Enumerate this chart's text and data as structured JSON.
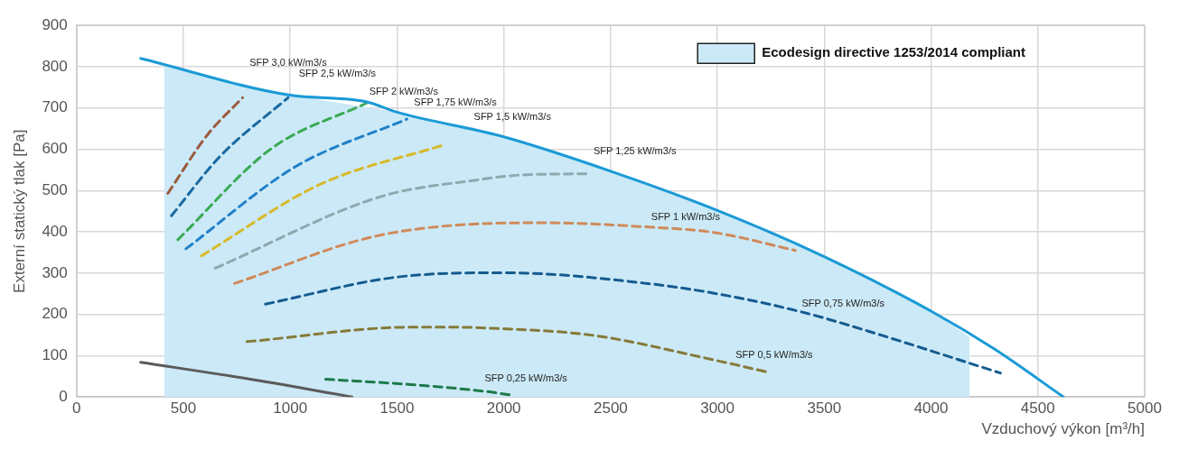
{
  "chart_data": {
    "type": "line",
    "xlabel": "Vzduchový výkon [m³/h]",
    "ylabel": "Externí statický tlak [Pa]",
    "xlim": [
      0,
      5000
    ],
    "ylim": [
      0,
      900
    ],
    "xticks": [
      0,
      500,
      1000,
      1500,
      2000,
      2500,
      3000,
      3500,
      4000,
      4500,
      5000
    ],
    "yticks": [
      0,
      100,
      200,
      300,
      400,
      500,
      600,
      700,
      800,
      900
    ],
    "grid": true,
    "legend": "top right",
    "series": [
      {
        "type": "area",
        "name": "Ecodesign directive 1253/2014 compliant",
        "color": "#cbe9f6",
        "x": [
          410,
          1000,
          1500,
          2000,
          2500,
          3000,
          3500,
          4000,
          4270,
          4180
        ],
        "values": [
          805,
          731,
          690,
          630,
          547,
          452,
          340,
          208,
          115,
          0
        ]
      },
      {
        "type": "line",
        "color": "#1a9ad6",
        "line_style": "solid",
        "x": [
          300,
          1000,
          1350,
          1500,
          2000,
          2500,
          3000,
          3500,
          4000,
          4300,
          4620
        ],
        "values": [
          820,
          731,
          716,
          690,
          630,
          547,
          452,
          340,
          208,
          115,
          0
        ]
      },
      {
        "type": "line",
        "color": "#5a5a5a",
        "line_style": "solid",
        "x": [
          300,
          790,
          1290
        ],
        "values": [
          84,
          45,
          0
        ]
      },
      {
        "type": "line",
        "color": "#9b5a3c",
        "line_style": "dashed",
        "x": [
          427,
          611,
          777
        ],
        "values": [
          493,
          634,
          725
        ]
      },
      {
        "type": "line",
        "color": "#1a69a0",
        "line_style": "dashed",
        "x": [
          444,
          670,
          990
        ],
        "values": [
          439,
          582,
          725
        ]
      },
      {
        "type": "line",
        "color": "#3aaa55",
        "line_style": "dashed",
        "x": [
          474,
          910,
          1358
        ],
        "values": [
          381,
          601,
          712
        ]
      },
      {
        "type": "line",
        "color": "#2080c8",
        "line_style": "dashed",
        "x": [
          512,
          1025,
          1546
        ],
        "values": [
          359,
          558,
          673
        ]
      },
      {
        "type": "line",
        "color": "#d8b92a",
        "line_style": "dashed",
        "x": [
          585,
          1140,
          1729
        ],
        "values": [
          342,
          515,
          612
        ]
      },
      {
        "type": "line",
        "color": "#8fa8b0",
        "line_style": "dashed",
        "x": [
          649,
          1422,
          1879,
          2062,
          2404
        ],
        "values": [
          312,
          485,
          526,
          537,
          541
        ]
      },
      {
        "type": "line",
        "color": "#d0895a",
        "line_style": "dashed",
        "x": [
          739,
          1422,
          2178,
          2634,
          2989,
          3365
        ],
        "values": [
          275,
          392,
          422,
          413,
          398,
          355
        ]
      },
      {
        "type": "line",
        "color": "#155b8f",
        "line_style": "dashed",
        "x": [
          884,
          1494,
          1994,
          2703,
          3061,
          3416,
          3702,
          4325
        ],
        "values": [
          225,
          290,
          301,
          273,
          244,
          203,
          160,
          58
        ]
      },
      {
        "type": "line",
        "color": "#857a3a",
        "line_style": "dashed",
        "x": [
          798,
          1567,
          1780,
          1921,
          2421,
          2989,
          3237
        ],
        "values": [
          134,
          169,
          169,
          167,
          149,
          89,
          60
        ]
      },
      {
        "type": "line",
        "color": "#1e7a4a",
        "line_style": "dashed",
        "x": [
          1166,
          1567,
          1921,
          2041
        ],
        "values": [
          43,
          30,
          13,
          4
        ]
      }
    ],
    "annotations": [
      "SFP 3,0 kW/m3/s",
      "SFP 2,5 kW/m3/s",
      "SFP 2 kW/m3/s",
      "SFP 1,75 kW/m3/s",
      "SFP 1,5 kW/m3/s",
      "SFP 1,25 kW/m3/s",
      "SFP 1 kW/m3/s",
      "SFP 0,75 kW/m3/s",
      "SFP 0,5 kW/m3/s",
      "SFP 0,25 kW/m3/s"
    ]
  }
}
